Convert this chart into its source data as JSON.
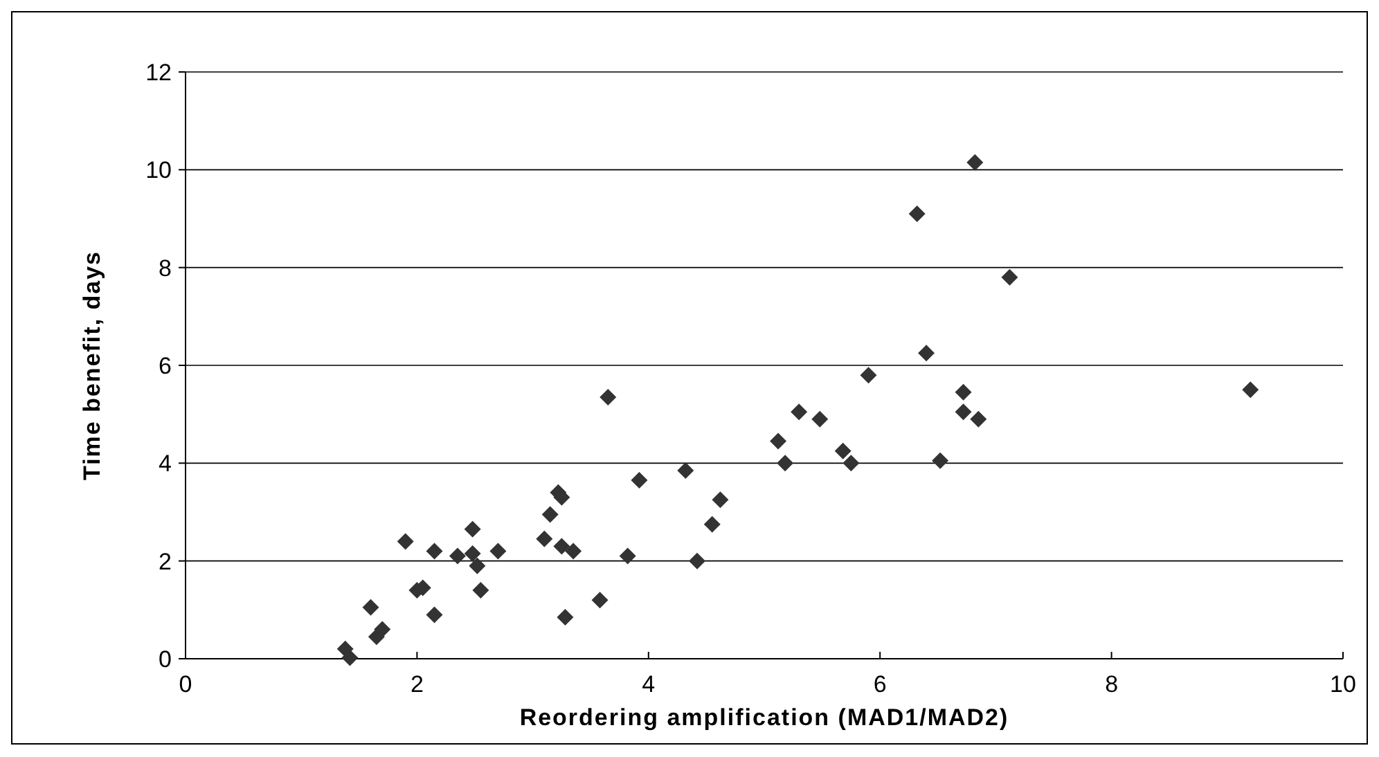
{
  "chart_data": {
    "type": "scatter",
    "xlabel": "Reordering amplification (MAD1/MAD2)",
    "ylabel": "Time benefit, days",
    "xlim": [
      0,
      10
    ],
    "xticks": [
      0,
      2,
      4,
      6,
      8,
      10
    ],
    "ylim": [
      0,
      12
    ],
    "yticks": [
      0,
      2,
      4,
      6,
      8,
      10,
      12
    ],
    "grid": "y",
    "marker": "diamond",
    "series": [
      {
        "color": "#333333",
        "x": [
          1.38,
          1.42,
          1.6,
          1.65,
          1.7,
          1.9,
          2.0,
          2.05,
          2.15,
          2.15,
          2.35,
          2.48,
          2.48,
          2.52,
          2.55,
          2.7,
          3.1,
          3.15,
          3.22,
          3.25,
          3.25,
          3.28,
          3.35,
          3.58,
          3.65,
          3.82,
          3.92,
          4.32,
          4.42,
          4.55,
          4.62,
          5.12,
          5.18,
          5.3,
          5.48,
          5.68,
          5.75,
          5.9,
          6.32,
          6.4,
          6.52,
          6.72,
          6.72,
          6.82,
          6.85,
          7.12,
          9.2
        ],
        "values": [
          0.2,
          0.02,
          1.05,
          0.45,
          0.6,
          2.4,
          1.4,
          1.45,
          0.9,
          2.2,
          2.1,
          2.65,
          2.15,
          1.9,
          1.4,
          2.2,
          2.45,
          2.95,
          3.4,
          3.3,
          2.3,
          0.85,
          2.2,
          1.2,
          5.35,
          2.1,
          3.65,
          3.85,
          2.0,
          2.75,
          3.25,
          4.45,
          4.0,
          5.05,
          4.9,
          4.25,
          4.0,
          5.8,
          9.1,
          6.25,
          4.05,
          5.45,
          5.05,
          10.15,
          4.9,
          7.8,
          5.5
        ]
      }
    ]
  }
}
